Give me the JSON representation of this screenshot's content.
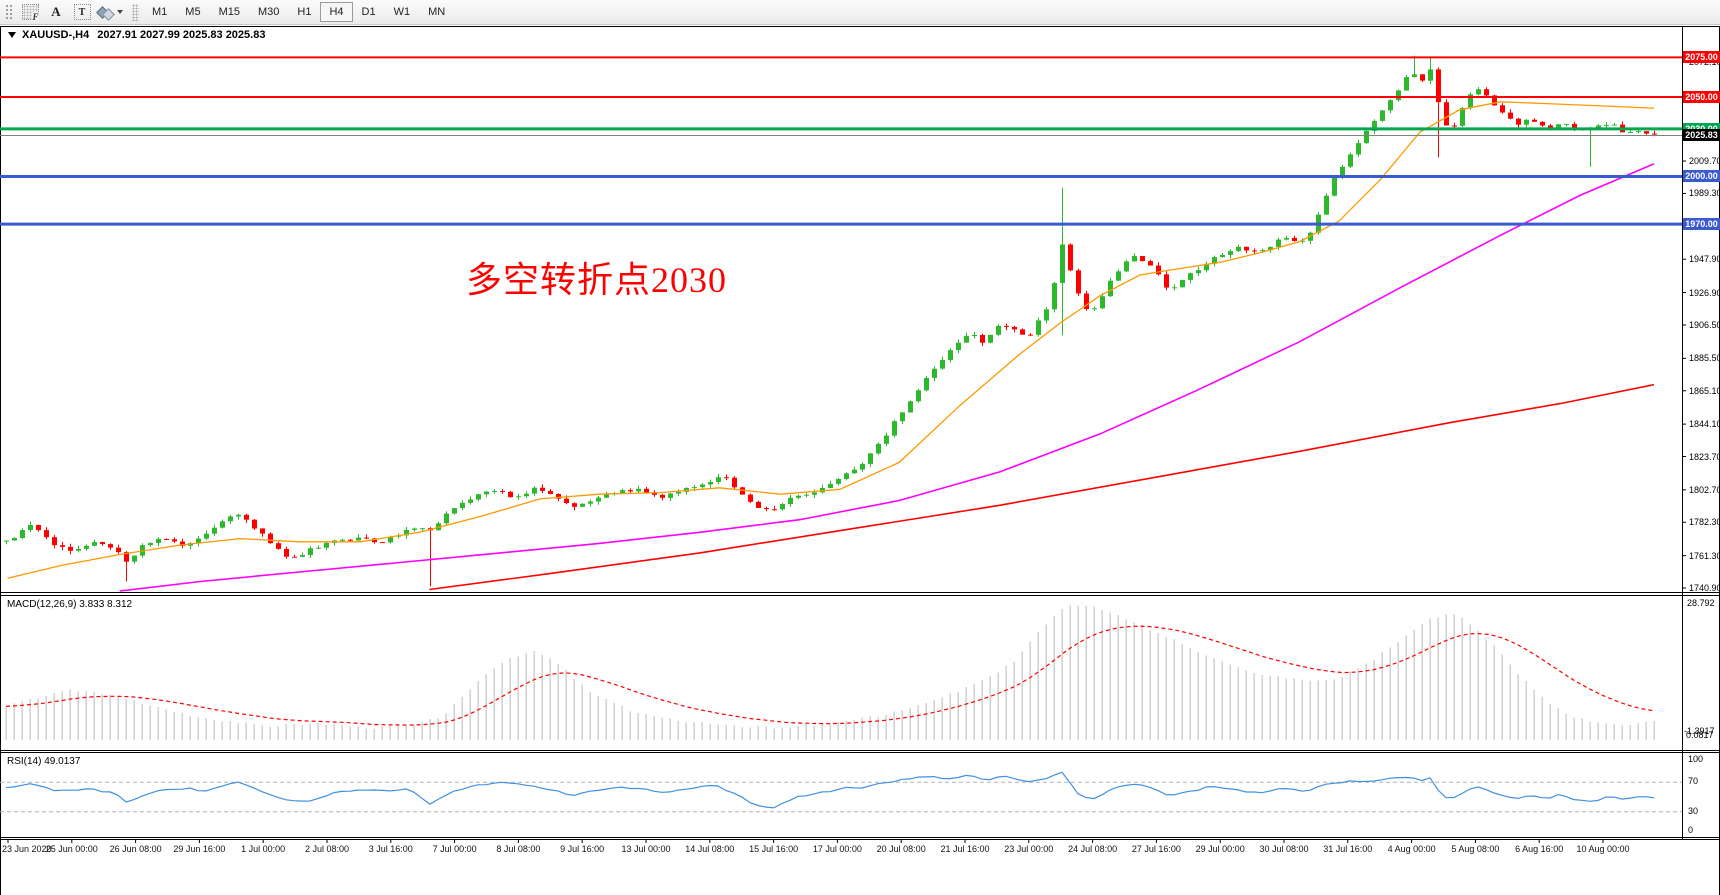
{
  "toolbar": {
    "icon_f": "F",
    "icon_a": "A",
    "icon_t": "T",
    "timeframes": [
      "M1",
      "M5",
      "M15",
      "M30",
      "H1",
      "H4",
      "D1",
      "W1",
      "MN"
    ],
    "active_timeframe": "H4"
  },
  "chart": {
    "symbol_period": "XAUUSD-,H4",
    "ohlc": "2027.91 2027.99 2025.83 2025.83"
  },
  "annotation": {
    "text": "多空转折点2030",
    "color": "#ff0000"
  },
  "indicators": {
    "macd": {
      "label": "MACD(12,26,9)",
      "values": "3.833 8.312"
    },
    "rsi": {
      "label": "RSI(14)",
      "value": "49.0137"
    }
  },
  "chart_data": {
    "type": "candlestick",
    "symbol": "XAUUSD-",
    "timeframe": "H4",
    "ohlc": {
      "open": 2027.91,
      "high": 2027.99,
      "low": 2025.83,
      "close": 2025.83
    },
    "grid": false,
    "price_axis": {
      "range": {
        "top": 2094.1,
        "bottom": 1738.4
      },
      "ticks": [
        "2072.10",
        "2009.70",
        "1989.30",
        "1947.90",
        "1926.90",
        "1906.50",
        "1885.50",
        "1865.10",
        "1844.10",
        "1823.70",
        "1802.70",
        "1782.30",
        "1761.30",
        "1740.90"
      ],
      "levels": [
        {
          "price": 2075.0,
          "label": "2075.00",
          "color": "#ff0000",
          "width": 2
        },
        {
          "price": 2050.0,
          "label": "2050.00",
          "color": "#ff0000",
          "width": 2
        },
        {
          "price": 2030.0,
          "label": "2030.00",
          "color": "#00a64f",
          "width": 3
        },
        {
          "price": 2000.0,
          "label": "2000.00",
          "color": "#3a5bd0",
          "width": 3
        },
        {
          "price": 1970.0,
          "label": "1970.00",
          "color": "#3a5bd0",
          "width": 3
        }
      ],
      "current_price": {
        "price": 2025.83,
        "label": "2025.83",
        "bg": "#000000"
      }
    },
    "time_axis": {
      "labels": [
        "23 Jun 2020",
        "25 Jun 00:00",
        "26 Jun 08:00",
        "29 Jun 16:00",
        "1 Jul 00:00",
        "2 Jul 08:00",
        "3 Jul 16:00",
        "7 Jul 00:00",
        "8 Jul 08:00",
        "9 Jul 16:00",
        "13 Jul 00:00",
        "14 Jul 08:00",
        "15 Jul 16:00",
        "17 Jul 00:00",
        "20 Jul 08:00",
        "21 Jul 16:00",
        "23 Jul 00:00",
        "24 Jul 08:00",
        "27 Jul 16:00",
        "29 Jul 00:00",
        "30 Jul 08:00",
        "31 Jul 16:00",
        "4 Aug 00:00",
        "5 Aug 08:00",
        "6 Aug 16:00",
        "10 Aug 00:00"
      ]
    },
    "bars": {
      "count": 207,
      "seed": 20200810,
      "close_noise": 2.2,
      "wick_noise": 2.2,
      "up_color": "#2eb82e",
      "down_color": "#ff0000",
      "waypoints": [
        [
          0,
          1770
        ],
        [
          0.015,
          1780
        ],
        [
          0.03,
          1768
        ],
        [
          0.042,
          1764
        ],
        [
          0.054,
          1770
        ],
        [
          0.066,
          1765
        ],
        [
          0.073,
          1757
        ],
        [
          0.084,
          1769
        ],
        [
          0.096,
          1772
        ],
        [
          0.109,
          1767
        ],
        [
          0.121,
          1774
        ],
        [
          0.133,
          1784
        ],
        [
          0.14,
          1788
        ],
        [
          0.149,
          1780
        ],
        [
          0.16,
          1770
        ],
        [
          0.172,
          1758
        ],
        [
          0.184,
          1765
        ],
        [
          0.197,
          1770
        ],
        [
          0.212,
          1772
        ],
        [
          0.227,
          1770
        ],
        [
          0.239,
          1775
        ],
        [
          0.25,
          1780
        ],
        [
          0.257,
          1777
        ],
        [
          0.266,
          1787
        ],
        [
          0.275,
          1794
        ],
        [
          0.286,
          1800
        ],
        [
          0.297,
          1803
        ],
        [
          0.309,
          1797
        ],
        [
          0.321,
          1804
        ],
        [
          0.333,
          1799
        ],
        [
          0.345,
          1792
        ],
        [
          0.357,
          1797
        ],
        [
          0.37,
          1801
        ],
        [
          0.385,
          1803
        ],
        [
          0.397,
          1797
        ],
        [
          0.412,
          1803
        ],
        [
          0.427,
          1808
        ],
        [
          0.436,
          1811
        ],
        [
          0.445,
          1800
        ],
        [
          0.454,
          1793
        ],
        [
          0.464,
          1789
        ],
        [
          0.476,
          1797
        ],
        [
          0.488,
          1801
        ],
        [
          0.5,
          1806
        ],
        [
          0.509,
          1812
        ],
        [
          0.519,
          1818
        ],
        [
          0.53,
          1832
        ],
        [
          0.541,
          1848
        ],
        [
          0.551,
          1862
        ],
        [
          0.562,
          1878
        ],
        [
          0.573,
          1890
        ],
        [
          0.584,
          1902
        ],
        [
          0.594,
          1895
        ],
        [
          0.603,
          1908
        ],
        [
          0.62,
          1898
        ],
        [
          0.633,
          1920
        ],
        [
          0.641,
          1958
        ],
        [
          0.649,
          1930
        ],
        [
          0.658,
          1912
        ],
        [
          0.67,
          1935
        ],
        [
          0.682,
          1950
        ],
        [
          0.694,
          1945
        ],
        [
          0.706,
          1928
        ],
        [
          0.718,
          1938
        ],
        [
          0.731,
          1948
        ],
        [
          0.746,
          1955
        ],
        [
          0.761,
          1952
        ],
        [
          0.776,
          1962
        ],
        [
          0.788,
          1958
        ],
        [
          0.797,
          1978
        ],
        [
          0.806,
          2000
        ],
        [
          0.816,
          2015
        ],
        [
          0.825,
          2028
        ],
        [
          0.834,
          2040
        ],
        [
          0.843,
          2052
        ],
        [
          0.852,
          2068
        ],
        [
          0.859,
          2060
        ],
        [
          0.865,
          2070
        ],
        [
          0.871,
          2035
        ],
        [
          0.877,
          2028
        ],
        [
          0.885,
          2048
        ],
        [
          0.893,
          2056
        ],
        [
          0.9,
          2048
        ],
        [
          0.908,
          2040
        ],
        [
          0.916,
          2033
        ],
        [
          0.925,
          2036
        ],
        [
          0.934,
          2030
        ],
        [
          0.943,
          2034
        ],
        [
          0.952,
          2029
        ],
        [
          0.963,
          2031
        ],
        [
          0.973,
          2034
        ],
        [
          0.982,
          2027
        ],
        [
          0.991,
          2029
        ],
        [
          1,
          2026
        ]
      ],
      "events": [
        {
          "t": 0.073,
          "low": 1745
        },
        {
          "t": 0.257,
          "low": 1742
        },
        {
          "t": 0.641,
          "high": 1993,
          "low": 1900
        },
        {
          "t": 0.852,
          "high": 2076
        },
        {
          "t": 0.865,
          "high": 2075
        },
        {
          "t": 0.871,
          "low": 2012
        },
        {
          "t": 0.963,
          "low": 2006
        }
      ]
    },
    "moving_averages": [
      {
        "name": "ma-fast-orange",
        "color": "#ff9900",
        "width": 1.3,
        "points": [
          [
            0.001,
            1747
          ],
          [
            0.033,
            1755
          ],
          [
            0.069,
            1762
          ],
          [
            0.106,
            1768
          ],
          [
            0.142,
            1772
          ],
          [
            0.178,
            1770
          ],
          [
            0.215,
            1770
          ],
          [
            0.251,
            1776
          ],
          [
            0.288,
            1786
          ],
          [
            0.324,
            1797
          ],
          [
            0.36,
            1800
          ],
          [
            0.397,
            1801
          ],
          [
            0.433,
            1804
          ],
          [
            0.47,
            1800
          ],
          [
            0.506,
            1803
          ],
          [
            0.542,
            1820
          ],
          [
            0.579,
            1856
          ],
          [
            0.615,
            1888
          ],
          [
            0.64,
            1908
          ],
          [
            0.664,
            1925
          ],
          [
            0.688,
            1938
          ],
          [
            0.712,
            1942
          ],
          [
            0.737,
            1946
          ],
          [
            0.761,
            1952
          ],
          [
            0.785,
            1959
          ],
          [
            0.809,
            1972
          ],
          [
            0.834,
            1998
          ],
          [
            0.858,
            2028
          ],
          [
            0.882,
            2042
          ],
          [
            0.907,
            2047
          ],
          [
            0.931,
            2046
          ],
          [
            0.979,
            2044
          ],
          [
            1,
            2043
          ]
        ]
      },
      {
        "name": "ma-mid-magenta",
        "color": "#ff00ff",
        "width": 1.6,
        "points": [
          [
            0.069,
            1739
          ],
          [
            0.118,
            1745
          ],
          [
            0.178,
            1751
          ],
          [
            0.239,
            1757
          ],
          [
            0.3,
            1763
          ],
          [
            0.36,
            1769
          ],
          [
            0.421,
            1776
          ],
          [
            0.482,
            1784
          ],
          [
            0.542,
            1796
          ],
          [
            0.603,
            1814
          ],
          [
            0.664,
            1838
          ],
          [
            0.724,
            1866
          ],
          [
            0.785,
            1896
          ],
          [
            0.846,
            1930
          ],
          [
            0.907,
            1963
          ],
          [
            0.955,
            1988
          ],
          [
            1,
            2008
          ]
        ]
      },
      {
        "name": "ma-slow-red",
        "color": "#ff0000",
        "width": 1.6,
        "points": [
          [
            0.257,
            1740
          ],
          [
            0.33,
            1750
          ],
          [
            0.421,
            1763
          ],
          [
            0.512,
            1778
          ],
          [
            0.603,
            1793
          ],
          [
            0.694,
            1810
          ],
          [
            0.785,
            1827
          ],
          [
            0.876,
            1845
          ],
          [
            0.943,
            1857
          ],
          [
            1,
            1869
          ]
        ]
      }
    ],
    "macd": {
      "range": {
        "top": 30.25,
        "bottom": -2.1
      },
      "max_label": "28.792",
      "min_labels": [
        "0.0817",
        "-1.3917"
      ],
      "macd_value": 3.833,
      "signal_value": 8.312,
      "hist_color": "#c8c8c8",
      "signal_color": "#ff0000",
      "waypoints": [
        [
          0,
          7
        ],
        [
          0.02,
          9
        ],
        [
          0.04,
          10.5
        ],
        [
          0.07,
          9
        ],
        [
          0.1,
          6
        ],
        [
          0.13,
          4
        ],
        [
          0.16,
          3
        ],
        [
          0.19,
          3.5
        ],
        [
          0.22,
          2.5
        ],
        [
          0.245,
          3
        ],
        [
          0.265,
          5
        ],
        [
          0.285,
          12
        ],
        [
          0.305,
          17
        ],
        [
          0.32,
          19
        ],
        [
          0.335,
          16
        ],
        [
          0.355,
          10
        ],
        [
          0.38,
          6
        ],
        [
          0.41,
          4
        ],
        [
          0.44,
          3
        ],
        [
          0.47,
          2.5
        ],
        [
          0.5,
          3.5
        ],
        [
          0.53,
          5
        ],
        [
          0.56,
          8
        ],
        [
          0.59,
          12
        ],
        [
          0.61,
          16
        ],
        [
          0.63,
          24
        ],
        [
          0.645,
          28.6
        ],
        [
          0.665,
          27.5
        ],
        [
          0.69,
          24
        ],
        [
          0.715,
          20
        ],
        [
          0.74,
          16
        ],
        [
          0.765,
          13.5
        ],
        [
          0.79,
          12.5
        ],
        [
          0.81,
          13
        ],
        [
          0.83,
          17
        ],
        [
          0.85,
          22
        ],
        [
          0.865,
          25.5
        ],
        [
          0.878,
          26.5
        ],
        [
          0.89,
          24
        ],
        [
          0.905,
          19
        ],
        [
          0.92,
          13
        ],
        [
          0.935,
          8
        ],
        [
          0.95,
          5
        ],
        [
          0.965,
          3.5
        ],
        [
          0.98,
          3
        ],
        [
          1,
          3.8
        ]
      ]
    },
    "rsi": {
      "range": {
        "min": 0,
        "max": 100
      },
      "levels": [
        70,
        30
      ],
      "axis_labels": [
        "100",
        "70",
        "30",
        "0"
      ],
      "value": 49.0137,
      "color": "#4090e0",
      "waypoints": [
        [
          0,
          62
        ],
        [
          0.015,
          68
        ],
        [
          0.03,
          58
        ],
        [
          0.05,
          61
        ],
        [
          0.066,
          55
        ],
        [
          0.073,
          42
        ],
        [
          0.09,
          58
        ],
        [
          0.11,
          62
        ],
        [
          0.12,
          58
        ],
        [
          0.133,
          66
        ],
        [
          0.14,
          70
        ],
        [
          0.155,
          58
        ],
        [
          0.17,
          46
        ],
        [
          0.184,
          44
        ],
        [
          0.2,
          56
        ],
        [
          0.215,
          60
        ],
        [
          0.23,
          58
        ],
        [
          0.245,
          62
        ],
        [
          0.257,
          40
        ],
        [
          0.27,
          56
        ],
        [
          0.286,
          66
        ],
        [
          0.3,
          70
        ],
        [
          0.315,
          66
        ],
        [
          0.33,
          60
        ],
        [
          0.345,
          52
        ],
        [
          0.36,
          60
        ],
        [
          0.375,
          63
        ],
        [
          0.39,
          60
        ],
        [
          0.4,
          55
        ],
        [
          0.415,
          62
        ],
        [
          0.43,
          66
        ],
        [
          0.445,
          52
        ],
        [
          0.455,
          38
        ],
        [
          0.465,
          35
        ],
        [
          0.48,
          50
        ],
        [
          0.5,
          58
        ],
        [
          0.51,
          64
        ],
        [
          0.52,
          62
        ],
        [
          0.53,
          68
        ],
        [
          0.545,
          74
        ],
        [
          0.56,
          78
        ],
        [
          0.575,
          74
        ],
        [
          0.584,
          80
        ],
        [
          0.595,
          72
        ],
        [
          0.605,
          78
        ],
        [
          0.62,
          70
        ],
        [
          0.633,
          76
        ],
        [
          0.641,
          84
        ],
        [
          0.65,
          55
        ],
        [
          0.658,
          45
        ],
        [
          0.67,
          60
        ],
        [
          0.682,
          68
        ],
        [
          0.694,
          64
        ],
        [
          0.706,
          52
        ],
        [
          0.72,
          58
        ],
        [
          0.73,
          64
        ],
        [
          0.746,
          60
        ],
        [
          0.76,
          55
        ],
        [
          0.776,
          62
        ],
        [
          0.788,
          58
        ],
        [
          0.8,
          66
        ],
        [
          0.815,
          72
        ],
        [
          0.825,
          70
        ],
        [
          0.835,
          74
        ],
        [
          0.845,
          76
        ],
        [
          0.852,
          78
        ],
        [
          0.86,
          72
        ],
        [
          0.865,
          76
        ],
        [
          0.871,
          50
        ],
        [
          0.877,
          46
        ],
        [
          0.885,
          58
        ],
        [
          0.893,
          63
        ],
        [
          0.9,
          58
        ],
        [
          0.908,
          52
        ],
        [
          0.916,
          47
        ],
        [
          0.925,
          52
        ],
        [
          0.934,
          48
        ],
        [
          0.943,
          53
        ],
        [
          0.952,
          47
        ],
        [
          0.963,
          44
        ],
        [
          0.973,
          52
        ],
        [
          0.982,
          46
        ],
        [
          0.991,
          50
        ],
        [
          1,
          49
        ]
      ]
    }
  }
}
